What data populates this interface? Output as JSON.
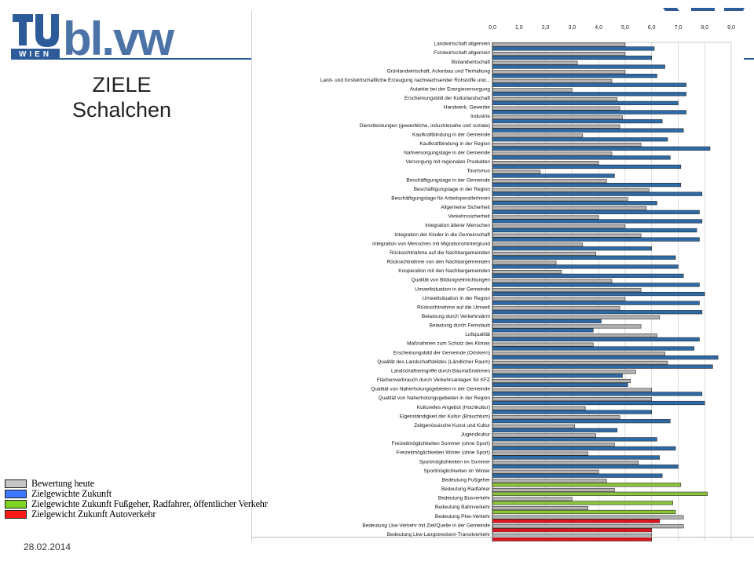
{
  "slide": {
    "title_line1": "ZIELE",
    "title_line2": "Schalchen",
    "date": "28.02.2014"
  },
  "logos": {
    "tu_text": "TU WIEN",
    "institute_text": "bl.vw"
  },
  "colors": {
    "brand_blue": "#2d5b9a",
    "bar_gray": "#b3b3b3",
    "bar_blue": "#2d6aa8",
    "bar_green": "#8cc43c",
    "bar_red": "#e0141c",
    "bar_edge": "#2a2a2a"
  },
  "legend": [
    {
      "label": "Bewertung heute",
      "color": "#c6c6c6"
    },
    {
      "label": "Zielgewichte Zukunft",
      "color": "#3b78ff"
    },
    {
      "label": "Zielgewichte Zukunft Fußgeher, Radfahrer, öffentlicher Verkehr",
      "color": "#7ed321"
    },
    {
      "label": "Zielgewicht Zukunft Autoverkehr",
      "color": "#ff1a1a"
    }
  ],
  "chart_data": {
    "type": "bar",
    "orientation": "horizontal",
    "xlim": [
      0,
      9
    ],
    "x_ticks": [
      "0,0",
      "1,0",
      "2,0",
      "3,0",
      "4,0",
      "5,0",
      "6,0",
      "7,0",
      "8,0",
      "9,0"
    ],
    "grid": true,
    "categories": [
      "Landwirtschaft allgemein",
      "Forstwirtschaft allgemein",
      "Biolandwirtschaft",
      "Grünlandwirtschaft, Ackerbau und Tierhaltung",
      "Land- und forstwirtschaftliche Erzeugung nachwachsender Rohstoffe und...",
      "Autarkie bei der Energieversorgung",
      "Erscheinungsbild der Kulturlandschaft",
      "Handwerk, Gewerbe",
      "Industrie",
      "Dienstleistungen (gewerbliche, industrienahe und soziale)",
      "Kaufkraftbindung in der Gemeinde",
      "Kaufkraftbindung in der Region",
      "Nahversorgungslage in der Gemeinde",
      "Versorgung mit regionalen Produkten",
      "Tourismus",
      "Beschäftigungslage in der Gemeinde",
      "Beschäftigungslage in der Region",
      "Beschäftigungslage für ArbeitspendlerInnen",
      "Allgemeine Sicherheit",
      "Verkehrssicherheit",
      "Integration älterer Menschen",
      "Integration der Kinder in die Gemeinschaft",
      "Integration von Menschen mit Migrationshintergrund",
      "Rücksichtnahme auf die Nachbargemeinden",
      "Rücksichtnahme von den Nachbargemeinden",
      "Kooperation mit den Nachbargemeinden",
      "Qualität von Bildungseinrichtungen",
      "Umweltsituation in der Gemeinde",
      "Umweltsituation in der Region",
      "Rücksichtnahme auf die Umwelt",
      "Belastung durch Verkehrslärm",
      "Belastung durch Feinstaub",
      "Luftqualität",
      "Maßnahmen zum Schutz des Klimas",
      "Erscheinungsbild der Gemeinde (Ortskern)",
      "Qualität des Landschaftsbildes (Ländlicher Raum)",
      "Landschaftseingriffe durch Baumaßnahmen",
      "Flächenverbrauch durch Verkehrsanlagen für KFZ",
      "Qualität von Naherholungsgebieten in der Gemeinde",
      "Qualität von Naherholungsgebieten in der Region",
      "Kulturelles Angebot (Hochkultur)",
      "Eigenständigkeit der Kultur (Brauchtum)",
      "Zeitgenössische Kunst und Kultur",
      "Jugendkultur",
      "Freizeitmöglichkeiten Sommer (ohne Sport)",
      "Freizeitmöglichkeiten Winter (ohne Sport)",
      "Sportmöglichkeiten im Sommer",
      "Sportmöglichkeiten im Winter",
      "Bedeutung Fußgeher",
      "Bedeutung Radfahrer",
      "Bedeutung Busverkehr",
      "Bedeutung Bahnverkehr",
      "Bedeutung Pkw-Verkehr",
      "Bedeutung Lkw-Verkehr mit Ziel/Quelle in der Gemeinde",
      "Bedeutung Lkw-Langstrecken/-Transitverkehr"
    ],
    "series": [
      {
        "name": "Bewertung heute",
        "values": [
          5.0,
          5.0,
          3.2,
          5.0,
          4.5,
          3.0,
          4.7,
          4.8,
          4.9,
          4.8,
          3.4,
          5.6,
          4.5,
          4.0,
          1.8,
          4.3,
          5.9,
          5.1,
          5.8,
          4.0,
          5.0,
          5.6,
          3.4,
          3.9,
          2.4,
          2.6,
          4.5,
          5.6,
          5.0,
          4.8,
          6.3,
          5.6,
          6.2,
          3.8,
          6.5,
          6.6,
          5.4,
          5.2,
          6.0,
          6.0,
          3.5,
          4.8,
          3.1,
          3.9,
          4.6,
          3.6,
          5.5,
          4.0,
          4.3,
          4.6,
          3.0,
          3.6,
          7.2,
          7.2,
          6.0
        ]
      },
      {
        "name": "Zielgewichte Zukunft",
        "values": [
          6.1,
          6.0,
          6.5,
          6.2,
          7.3,
          7.3,
          7.0,
          7.3,
          6.4,
          7.2,
          6.6,
          8.2,
          6.7,
          7.1,
          4.6,
          7.1,
          7.9,
          6.2,
          7.8,
          7.9,
          7.7,
          7.8,
          6.0,
          6.9,
          7.0,
          7.2,
          7.8,
          8.0,
          7.8,
          7.9,
          4.1,
          3.8,
          7.8,
          7.6,
          8.5,
          8.3,
          4.9,
          5.1,
          7.9,
          8.0,
          6.0,
          6.7,
          4.7,
          6.2,
          6.9,
          6.3,
          7.0,
          6.4,
          0,
          0,
          0,
          0,
          0,
          0,
          0
        ]
      },
      {
        "name": "Zielgewichte Zukunft Fußgeher, Radfahrer, öffentlicher Verkehr",
        "values": [
          0,
          0,
          0,
          0,
          0,
          0,
          0,
          0,
          0,
          0,
          0,
          0,
          0,
          0,
          0,
          0,
          0,
          0,
          0,
          0,
          0,
          0,
          0,
          0,
          0,
          0,
          0,
          0,
          0,
          0,
          0,
          0,
          0,
          0,
          0,
          0,
          0,
          0,
          0,
          0,
          0,
          0,
          0,
          0,
          0,
          0,
          0,
          0,
          7.1,
          8.1,
          6.8,
          6.9,
          0,
          0,
          0
        ]
      },
      {
        "name": "Zielgewicht Zukunft Autoverkehr",
        "values": [
          0,
          0,
          0,
          0,
          0,
          0,
          0,
          0,
          0,
          0,
          0,
          0,
          0,
          0,
          0,
          0,
          0,
          0,
          0,
          0,
          0,
          0,
          0,
          0,
          0,
          0,
          0,
          0,
          0,
          0,
          0,
          0,
          0,
          0,
          0,
          0,
          0,
          0,
          0,
          0,
          0,
          0,
          0,
          0,
          0,
          0,
          0,
          0,
          0,
          0,
          0,
          0,
          6.3,
          6.0,
          6.0
        ]
      }
    ]
  }
}
